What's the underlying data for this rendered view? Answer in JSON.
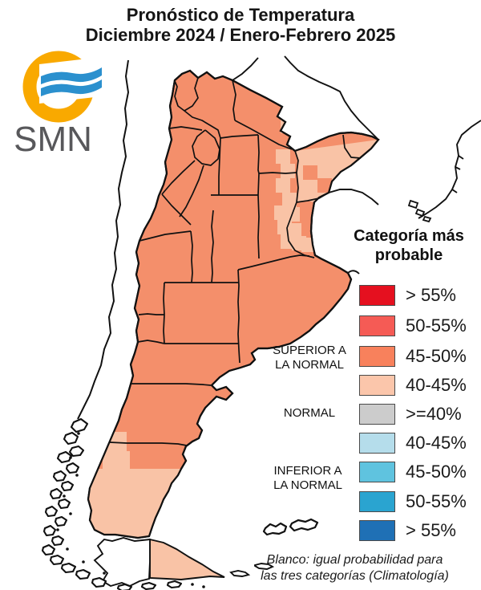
{
  "title": {
    "line1": "Pronóstico de Temperatura",
    "line2": "Diciembre 2024 / Enero-Febrero 2025"
  },
  "logo": {
    "text": "SMN",
    "ring_color": "#F9A900",
    "wave_color": "#2B90CE",
    "text_color": "#58585B"
  },
  "legend": {
    "title_line1": "Categoría más",
    "title_line2": "probable",
    "rows": [
      {
        "label": "> 55%",
        "color": "#E5101F"
      },
      {
        "label": "50-55%",
        "color": "#F55B55"
      },
      {
        "label": "45-50%",
        "color": "#F8815C"
      },
      {
        "label": "40-45%",
        "color": "#FBC6AB"
      },
      {
        "label": ">=40%",
        "color": "#CCCCCC"
      },
      {
        "label": "40-45%",
        "color": "#B5DDEB"
      },
      {
        "label": "45-50%",
        "color": "#5FC3DF"
      },
      {
        "label": "50-55%",
        "color": "#2AA4D0"
      },
      {
        "label": "> 55%",
        "color": "#1F70B5"
      }
    ],
    "groups": [
      {
        "line1": "SUPERIOR A",
        "line2": "LA NORMAL"
      },
      {
        "line1": "NORMAL",
        "line2": ""
      },
      {
        "line1": "INFERIOR A",
        "line2": "LA NORMAL"
      }
    ]
  },
  "map": {
    "color_45_50": "#F48F6B",
    "color_40_45": "#F9C3A6",
    "outline_color": "#111111",
    "regions": [
      {
        "area": "centro y norte de Argentina",
        "category": "Superior a la normal",
        "probability": "45-50%"
      },
      {
        "area": "litoral noreste (Corrientes-Misiones)",
        "category": "Superior a la normal",
        "probability": "40-45%"
      },
      {
        "area": "sur de Santa Cruz",
        "category": "Superior a la normal",
        "probability": "40-45%"
      },
      {
        "area": "Tierra del Fuego",
        "category": "Superior a la normal",
        "probability": "40-45%"
      }
    ]
  },
  "footer": {
    "line1": "Blanco: igual probabilidad para",
    "line2": "las tres categorías (Climatología)"
  }
}
